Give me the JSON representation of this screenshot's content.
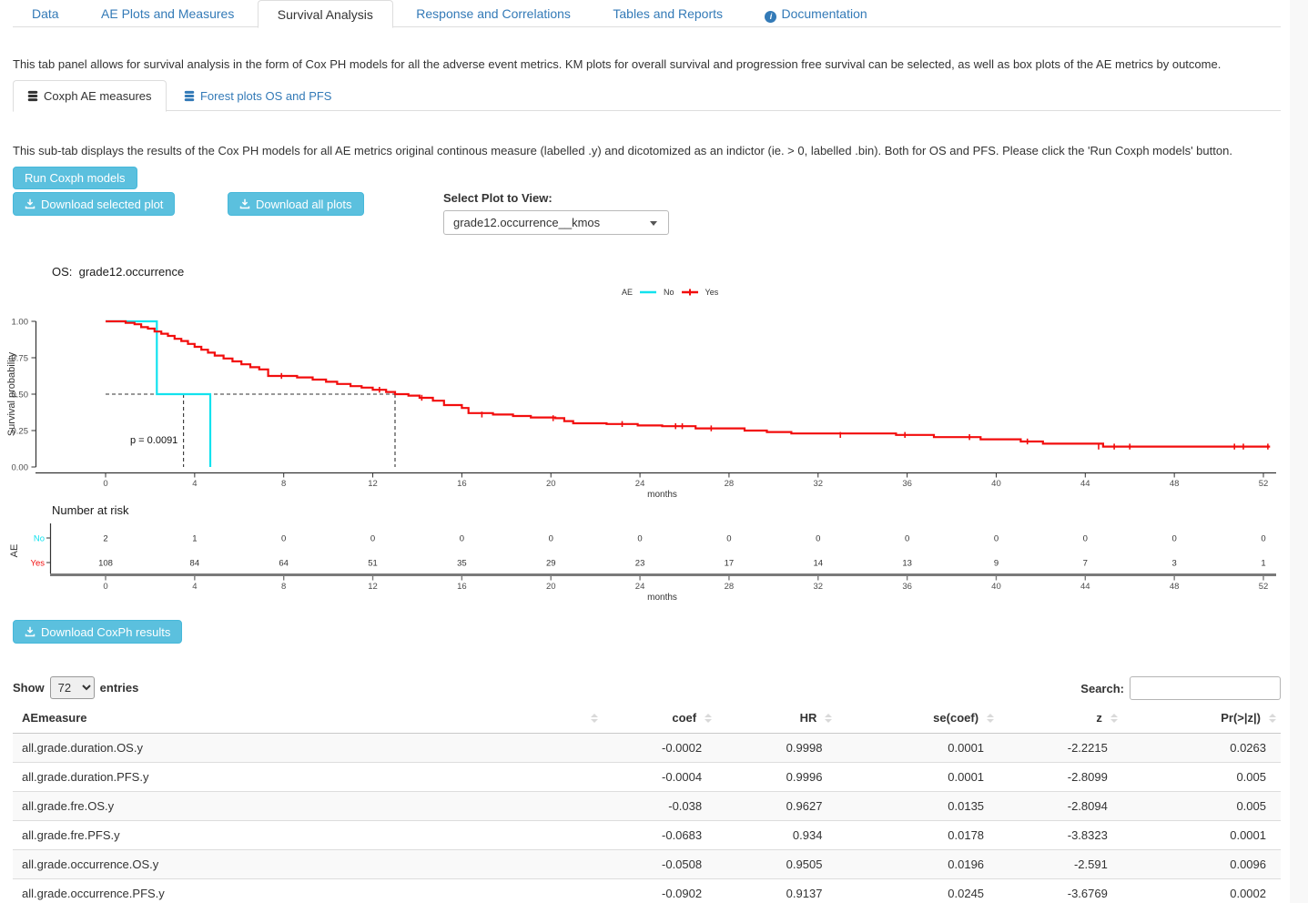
{
  "tabs": {
    "items": [
      {
        "label": "Data",
        "active": false
      },
      {
        "label": "AE Plots and Measures",
        "active": false
      },
      {
        "label": "Survival Analysis",
        "active": true
      },
      {
        "label": "Response and Correlations",
        "active": false
      },
      {
        "label": "Tables and Reports",
        "active": false
      },
      {
        "label": "Documentation",
        "active": false
      }
    ]
  },
  "intro": "This tab panel allows for survival analysis in the form of Cox PH models for all the adverse event metrics. KM plots for overall survival and progression free survival can be selected, as well as box plots of the AE metrics by outcome.",
  "subtabs": [
    {
      "label": "Coxph AE measures",
      "active": true
    },
    {
      "label": "Forest plots OS and PFS",
      "active": false
    }
  ],
  "subtab_intro": "This sub-tab displays the results of the Cox PH models for all AE metrics original continous measure (labelled .y) and dicotomized as an indictor (ie. > 0, labelled .bin). Both for OS and PFS. Please click the 'Run Coxph models' button.",
  "buttons": {
    "run": "Run Coxph models",
    "download_selected": "Download selected plot",
    "download_all": "Download all plots",
    "download_results": "Download CoxPh results"
  },
  "plot_select": {
    "label": "Select Plot to View:",
    "value": "grade12.occurrence__kmos"
  },
  "chart_data": {
    "type": "line",
    "subtype": "kaplan-meier",
    "title": "OS:  grade12.occurrence",
    "xlabel": "months",
    "ylabel": "Survival probability",
    "xlim": [
      0,
      52
    ],
    "ylim": [
      0,
      1
    ],
    "xticks": [
      0,
      4,
      8,
      12,
      16,
      20,
      24,
      28,
      32,
      36,
      40,
      44,
      48,
      52
    ],
    "yticks": [
      0,
      0.25,
      0.5,
      0.75,
      1
    ],
    "grid": false,
    "pvalue_label": "p = 0.0091",
    "legend": {
      "title": "AE",
      "position": "top",
      "entries": [
        {
          "name": "No",
          "color": "#12E2EE"
        },
        {
          "name": "Yes",
          "color": "#F20D0D"
        }
      ]
    },
    "median_lines": {
      "survival": 0.5,
      "no_median_months": 3.5,
      "yes_median_months": 13
    },
    "series": [
      {
        "name": "No",
        "color": "#12E2EE",
        "steps": [
          [
            0,
            1
          ],
          [
            2.3,
            1
          ],
          [
            2.3,
            0.5
          ],
          [
            4.7,
            0.5
          ],
          [
            4.7,
            0
          ]
        ]
      },
      {
        "name": "Yes",
        "color": "#F20D0D",
        "steps": [
          [
            0,
            1
          ],
          [
            0.9,
            0.99
          ],
          [
            1.3,
            0.98
          ],
          [
            1.6,
            0.96
          ],
          [
            1.9,
            0.95
          ],
          [
            2.2,
            0.93
          ],
          [
            2.5,
            0.915
          ],
          [
            2.8,
            0.9
          ],
          [
            3.1,
            0.88
          ],
          [
            3.4,
            0.865
          ],
          [
            3.7,
            0.845
          ],
          [
            4,
            0.825
          ],
          [
            4.3,
            0.805
          ],
          [
            4.6,
            0.785
          ],
          [
            4.9,
            0.765
          ],
          [
            5.3,
            0.745
          ],
          [
            5.7,
            0.725
          ],
          [
            6.1,
            0.705
          ],
          [
            6.5,
            0.685
          ],
          [
            6.9,
            0.67
          ],
          [
            7.3,
            0.625
          ],
          [
            8.6,
            0.615
          ],
          [
            9.3,
            0.6
          ],
          [
            9.9,
            0.585
          ],
          [
            10.4,
            0.57
          ],
          [
            11,
            0.555
          ],
          [
            11.5,
            0.545
          ],
          [
            12,
            0.53
          ],
          [
            12.6,
            0.515
          ],
          [
            13,
            0.5
          ],
          [
            13.6,
            0.49
          ],
          [
            14.1,
            0.475
          ],
          [
            14.7,
            0.455
          ],
          [
            15.2,
            0.425
          ],
          [
            16,
            0.405
          ],
          [
            16.3,
            0.37
          ],
          [
            17.4,
            0.36
          ],
          [
            18.3,
            0.35
          ],
          [
            19.1,
            0.34
          ],
          [
            20.2,
            0.335
          ],
          [
            20.6,
            0.315
          ],
          [
            21,
            0.3
          ],
          [
            22.5,
            0.295
          ],
          [
            23.9,
            0.285
          ],
          [
            25,
            0.28
          ],
          [
            26.5,
            0.265
          ],
          [
            28.7,
            0.25
          ],
          [
            29.7,
            0.24
          ],
          [
            30.8,
            0.23
          ],
          [
            35.5,
            0.22
          ],
          [
            37.2,
            0.205
          ],
          [
            39.3,
            0.19
          ],
          [
            41.1,
            0.175
          ],
          [
            42.1,
            0.16
          ],
          [
            44.8,
            0.14
          ],
          [
            52.3,
            0.14
          ]
        ]
      }
    ],
    "censor_marks_yes": [
      [
        7.9,
        0.625
      ],
      [
        12.3,
        0.53
      ],
      [
        14.2,
        0.475
      ],
      [
        16.9,
        0.36
      ],
      [
        20.1,
        0.335
      ],
      [
        23.2,
        0.295
      ],
      [
        25.6,
        0.28
      ],
      [
        25.9,
        0.28
      ],
      [
        27.2,
        0.265
      ],
      [
        33,
        0.22
      ],
      [
        35.9,
        0.22
      ],
      [
        38.8,
        0.205
      ],
      [
        41.4,
        0.175
      ],
      [
        44.6,
        0.14
      ],
      [
        45.3,
        0.14
      ],
      [
        46,
        0.14
      ],
      [
        50.7,
        0.14
      ],
      [
        51.1,
        0.14
      ],
      [
        52.2,
        0.14
      ]
    ],
    "risk_table": {
      "title": "Number at risk",
      "axis_label": "AE",
      "xlabel": "months",
      "months": [
        0,
        4,
        8,
        12,
        16,
        20,
        24,
        28,
        32,
        36,
        40,
        44,
        48,
        52
      ],
      "rows": [
        {
          "name": "No",
          "color": "#12E2EE",
          "values": [
            2,
            1,
            0,
            0,
            0,
            0,
            0,
            0,
            0,
            0,
            0,
            0,
            0,
            0
          ]
        },
        {
          "name": "Yes",
          "color": "#F20D0D",
          "values": [
            108,
            84,
            64,
            51,
            35,
            29,
            23,
            17,
            14,
            13,
            9,
            7,
            3,
            1
          ]
        }
      ]
    }
  },
  "table": {
    "show_label": "Show",
    "page_length": "72",
    "entries_label": "entries",
    "search_label": "Search:",
    "search_value": "",
    "headers": [
      "AEmeasure",
      "coef",
      "HR",
      "se(coef)",
      "z",
      "Pr(>|z|)"
    ],
    "rows": [
      [
        "all.grade.duration.OS.y",
        "-0.0002",
        "0.9998",
        "0.0001",
        "-2.2215",
        "0.0263"
      ],
      [
        "all.grade.duration.PFS.y",
        "-0.0004",
        "0.9996",
        "0.0001",
        "-2.8099",
        "0.005"
      ],
      [
        "all.grade.fre.OS.y",
        "-0.038",
        "0.9627",
        "0.0135",
        "-2.8094",
        "0.005"
      ],
      [
        "all.grade.fre.PFS.y",
        "-0.0683",
        "0.934",
        "0.0178",
        "-3.8323",
        "0.0001"
      ],
      [
        "all.grade.occurrence.OS.y",
        "-0.0508",
        "0.9505",
        "0.0196",
        "-2.591",
        "0.0096"
      ],
      [
        "all.grade.occurrence.PFS.y",
        "-0.0902",
        "0.9137",
        "0.0245",
        "-3.6769",
        "0.0002"
      ]
    ]
  }
}
